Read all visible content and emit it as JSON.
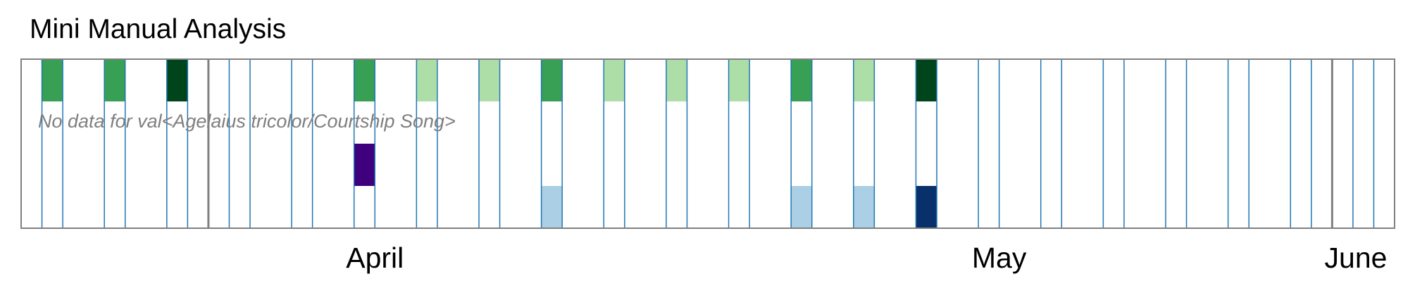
{
  "title": "Mini Manual Analysis",
  "chart_data": {
    "type": "heatmap",
    "title": "Mini Manual Analysis",
    "x_axis": "date",
    "month_labels": [
      "April",
      "May",
      "June"
    ],
    "columns": [
      {
        "start": "2009-03-31",
        "end": "2009-04-01"
      },
      {
        "start": "2009-04-03",
        "end": "2009-04-04"
      },
      {
        "start": "2009-04-06",
        "end": "2009-04-07"
      },
      {
        "start": "2009-04-09",
        "end": "2009-04-10"
      },
      {
        "start": "2009-04-12",
        "end": "2009-04-13"
      },
      {
        "start": "2009-04-15",
        "end": "2009-04-16"
      },
      {
        "start": "2009-04-18",
        "end": "2009-04-19"
      },
      {
        "start": "2009-04-21",
        "end": "2009-04-22"
      },
      {
        "start": "2009-04-24",
        "end": "2009-04-25"
      },
      {
        "start": "2009-04-27",
        "end": "2009-04-28"
      },
      {
        "start": "2009-04-30",
        "end": "2009-05-01"
      },
      {
        "start": "2009-05-03",
        "end": "2009-05-04"
      },
      {
        "start": "2009-05-06",
        "end": "2009-05-07"
      },
      {
        "start": "2009-05-09",
        "end": "2009-05-10"
      },
      {
        "start": "2009-05-12",
        "end": "2009-05-13"
      },
      {
        "start": "2009-05-15",
        "end": "2009-05-16"
      },
      {
        "start": "2009-05-18",
        "end": "2009-05-19"
      },
      {
        "start": "2009-05-21",
        "end": "2009-05-22"
      },
      {
        "start": "2009-05-24",
        "end": "2009-05-25"
      },
      {
        "start": "2009-05-27",
        "end": "2009-05-28"
      },
      {
        "start": "2009-05-30",
        "end": "2009-05-31"
      },
      {
        "start": "2009-06-02",
        "end": "2009-06-03"
      }
    ],
    "rows": 4,
    "cells": [
      {
        "col": 0,
        "row": 0,
        "color": "#37a055"
      },
      {
        "col": 1,
        "row": 0,
        "color": "#37a055"
      },
      {
        "col": 2,
        "row": 0,
        "color": "#00441b"
      },
      {
        "col": 5,
        "row": 0,
        "color": "#37a055"
      },
      {
        "col": 5,
        "row": 2,
        "color": "#3f007d"
      },
      {
        "col": 6,
        "row": 0,
        "color": "#aedea7"
      },
      {
        "col": 7,
        "row": 0,
        "color": "#aedea7"
      },
      {
        "col": 8,
        "row": 0,
        "color": "#37a055"
      },
      {
        "col": 8,
        "row": 3,
        "color": "#abd0e6"
      },
      {
        "col": 9,
        "row": 0,
        "color": "#aedea7"
      },
      {
        "col": 10,
        "row": 0,
        "color": "#aedea7"
      },
      {
        "col": 11,
        "row": 0,
        "color": "#aedea7"
      },
      {
        "col": 12,
        "row": 0,
        "color": "#37a055"
      },
      {
        "col": 12,
        "row": 3,
        "color": "#abd0e6"
      },
      {
        "col": 13,
        "row": 0,
        "color": "#aedea7"
      },
      {
        "col": 13,
        "row": 3,
        "color": "#abd0e6"
      },
      {
        "col": 14,
        "row": 0,
        "color": "#00441b"
      },
      {
        "col": 14,
        "row": 3,
        "color": "#08306b"
      }
    ],
    "month_boundaries": [
      "2009-04-08",
      "2009-06-01"
    ],
    "annotations": [
      "No data for val<Agelaius tricolor/Courtship Song>"
    ],
    "colors": {
      "column_outline": "#1f77b4",
      "frame": "#808080",
      "green_dark": "#00441b",
      "green_mid": "#37a055",
      "green_light": "#aedea7",
      "purple": "#3f007d",
      "blue_light": "#abd0e6",
      "blue_dark": "#08306b"
    }
  }
}
